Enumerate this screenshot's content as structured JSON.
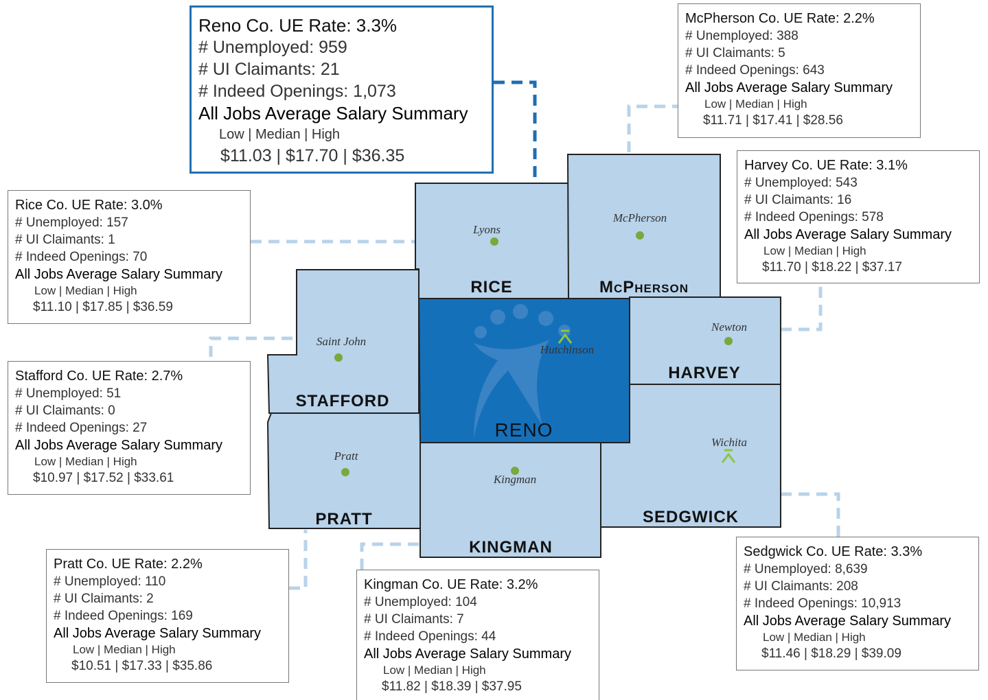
{
  "boxes": [
    {
      "title": "Reno Co. UE Rate: 3.3%",
      "unemployed": "# Unemployed: 959",
      "ui_claimants": "# UI Claimants: 21",
      "indeed_openings": "# Indeed Openings: 1,073",
      "salary_heading": "All Jobs Average Salary Summary",
      "salary_columns": "Low | Median | High",
      "salary_values": "$11.03 | $17.70 | $36.35"
    },
    {
      "title": "McPherson Co. UE Rate: 2.2%",
      "unemployed": "# Unemployed: 388",
      "ui_claimants": "# UI Claimants: 5",
      "indeed_openings": "# Indeed Openings: 643",
      "salary_heading": "All Jobs Average Salary Summary",
      "salary_columns": "Low | Median | High",
      "salary_values": "$11.71 | $17.41 | $28.56"
    },
    {
      "title": "Harvey Co. UE Rate: 3.1%",
      "unemployed": "# Unemployed: 543",
      "ui_claimants": "# UI Claimants: 16",
      "indeed_openings": "# Indeed Openings: 578",
      "salary_heading": "All Jobs Average Salary Summary",
      "salary_columns": "Low | Median | High",
      "salary_values": "$11.70 | $18.22 | $37.17"
    },
    {
      "title": "Rice Co. UE Rate: 3.0%",
      "unemployed": "# Unemployed: 157",
      "ui_claimants": "# UI Claimants: 1",
      "indeed_openings": "# Indeed Openings: 70",
      "salary_heading": "All Jobs Average Salary Summary",
      "salary_columns": "Low | Median | High",
      "salary_values": "$11.10 | $17.85 | $36.59"
    },
    {
      "title": "Stafford Co. UE Rate: 2.7%",
      "unemployed": "# Unemployed: 51",
      "ui_claimants": "# UI Claimants: 0",
      "indeed_openings": "# Indeed Openings: 27",
      "salary_heading": "All Jobs Average Salary Summary",
      "salary_columns": "Low | Median | High",
      "salary_values": "$10.97 | $17.52 | $33.61"
    },
    {
      "title": "Pratt Co. UE Rate: 2.2%",
      "unemployed": "# Unemployed: 110",
      "ui_claimants": "# UI Claimants: 2",
      "indeed_openings": "# Indeed Openings: 169",
      "salary_heading": "All Jobs Average Salary Summary",
      "salary_columns": "Low | Median | High",
      "salary_values": "$10.51 | $17.33 | $35.86"
    },
    {
      "title": "Kingman Co. UE Rate: 3.2%",
      "unemployed": "# Unemployed: 104",
      "ui_claimants": "# UI Claimants: 7",
      "indeed_openings": "# Indeed Openings: 44",
      "salary_heading": "All Jobs Average Salary Summary",
      "salary_columns": "Low | Median | High",
      "salary_values": "$11.82 | $18.39 | $37.95"
    },
    {
      "title": "Sedgwick Co. UE Rate: 3.3%",
      "unemployed": "# Unemployed: 8,639",
      "ui_claimants": "# UI Claimants: 208",
      "indeed_openings": "# Indeed Openings: 10,913",
      "salary_heading": "All Jobs Average Salary Summary",
      "salary_columns": "Low | Median | High",
      "salary_values": "$11.46 | $18.29 | $39.09"
    }
  ],
  "map": {
    "counties": [
      "RICE",
      "McPherson",
      "STAFFORD",
      "RENO",
      "HARVEY",
      "PRATT",
      "KINGMAN",
      "SEDGWICK"
    ],
    "cities": [
      "Lyons",
      "McPherson",
      "Saint John",
      "Hutchinson",
      "Newton",
      "Pratt",
      "Kingman",
      "Wichita"
    ]
  }
}
